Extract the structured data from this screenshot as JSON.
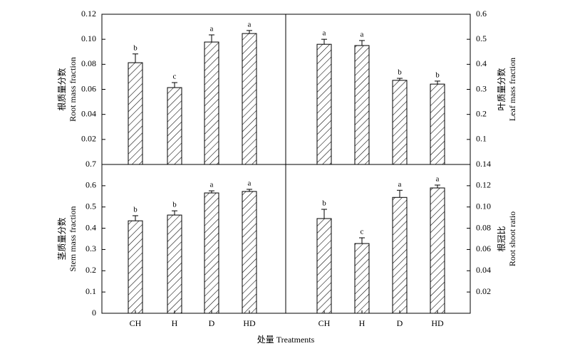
{
  "chart_data": [
    {
      "type": "bar",
      "ylabel": [
        "根质量分数",
        "Root mass fraction"
      ],
      "axis_side": "left",
      "color": "#000000",
      "values": [
        0.0813,
        0.0614,
        0.0978,
        0.1046
      ],
      "errors": [
        0.007,
        0.004,
        0.0057,
        0.0024
      ],
      "annotations": [
        "b",
        "c",
        "a",
        "a"
      ],
      "ylim": [
        0,
        0.12
      ],
      "yticks": [
        0.02,
        0.04,
        0.06,
        0.08,
        {
          "value": 0.1,
          "label": "0.10"
        },
        0.12
      ]
    },
    {
      "type": "bar",
      "ylabel": [
        "叶质量分数",
        "Leaf mass fraction"
      ],
      "axis_side": "right",
      "color": "#000000",
      "values": [
        0.48,
        0.475,
        0.336,
        0.321
      ],
      "errors": [
        0.02,
        0.02,
        0.008,
        0.012
      ],
      "annotations": [
        "a",
        "a",
        "b",
        "b"
      ],
      "ylim": [
        0,
        0.6
      ],
      "yticks": [
        0.1,
        0.2,
        0.3,
        0.4,
        0.5,
        0.6
      ]
    },
    {
      "type": "bar",
      "ylabel": [
        "茎质量分数",
        "Stem mass fraction"
      ],
      "axis_side": "left",
      "color": "#000000",
      "categories": [
        "CH",
        "H",
        "D",
        "HD"
      ],
      "values": [
        0.435,
        0.462,
        0.566,
        0.573
      ],
      "errors": [
        0.024,
        0.02,
        0.01,
        0.01
      ],
      "annotations": [
        "b",
        "b",
        "a",
        "a"
      ],
      "ylim": [
        0,
        0.7
      ],
      "yticks": [
        0,
        0.1,
        0.2,
        0.3,
        0.4,
        0.5,
        0.6,
        0.7
      ]
    },
    {
      "type": "bar",
      "ylabel": [
        "根冠比",
        "Root shoot ratio"
      ],
      "axis_side": "right",
      "color": "#000000",
      "categories": [
        "CH",
        "H",
        "D",
        "HD"
      ],
      "values": [
        0.0891,
        0.0656,
        0.109,
        0.1179
      ],
      "errors": [
        0.0087,
        0.0054,
        0.0067,
        0.0027
      ],
      "annotations": [
        "b",
        "c",
        "a",
        "a"
      ],
      "ylim": [
        0,
        0.14
      ],
      "yticks": [
        0.02,
        0.04,
        0.06,
        0.08,
        {
          "value": 0.1,
          "label": "0.10"
        },
        0.12,
        0.14
      ]
    }
  ],
  "xlabel": "处量 Treatments"
}
